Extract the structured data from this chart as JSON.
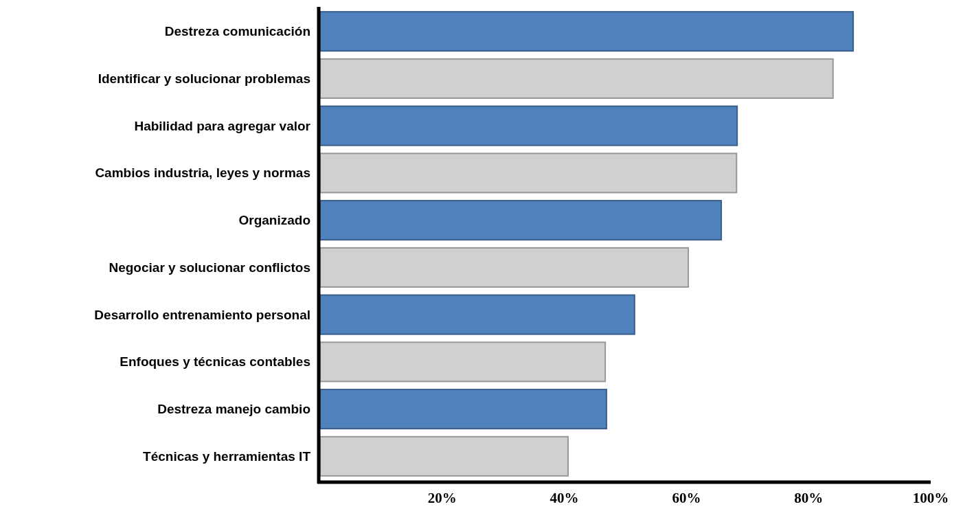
{
  "chart_data": {
    "type": "bar",
    "orientation": "horizontal",
    "categories": [
      "Destreza  comunicación",
      "Identificar y solucionar problemas",
      "Habilidad para agregar valor",
      "Cambios industria, leyes y normas",
      "Organizado",
      "Negociar y solucionar conflictos",
      "Desarrollo entrenamiento personal",
      "Enfoques y técnicas contables",
      "Destreza manejo cambio",
      "Técnicas y herramientas IT"
    ],
    "values": [
      87.3,
      84,
      68.3,
      68.2,
      65.7,
      60.3,
      51.5,
      46.7,
      46.9,
      40.6
    ],
    "colors": [
      "#4f81bd",
      "#d0d0d0",
      "#4f81bd",
      "#d0d0d0",
      "#4f81bd",
      "#d0d0d0",
      "#4f81bd",
      "#d0d0d0",
      "#4f81bd",
      "#d0d0d0"
    ],
    "xlim": [
      0,
      100
    ],
    "xticks": [
      {
        "value": 20,
        "label": "20%"
      },
      {
        "value": 40,
        "label": "40%"
      },
      {
        "value": 60,
        "label": "60%"
      },
      {
        "value": 80,
        "label": "80%"
      },
      {
        "value": 100,
        "label": "100%"
      }
    ],
    "grid": false
  }
}
